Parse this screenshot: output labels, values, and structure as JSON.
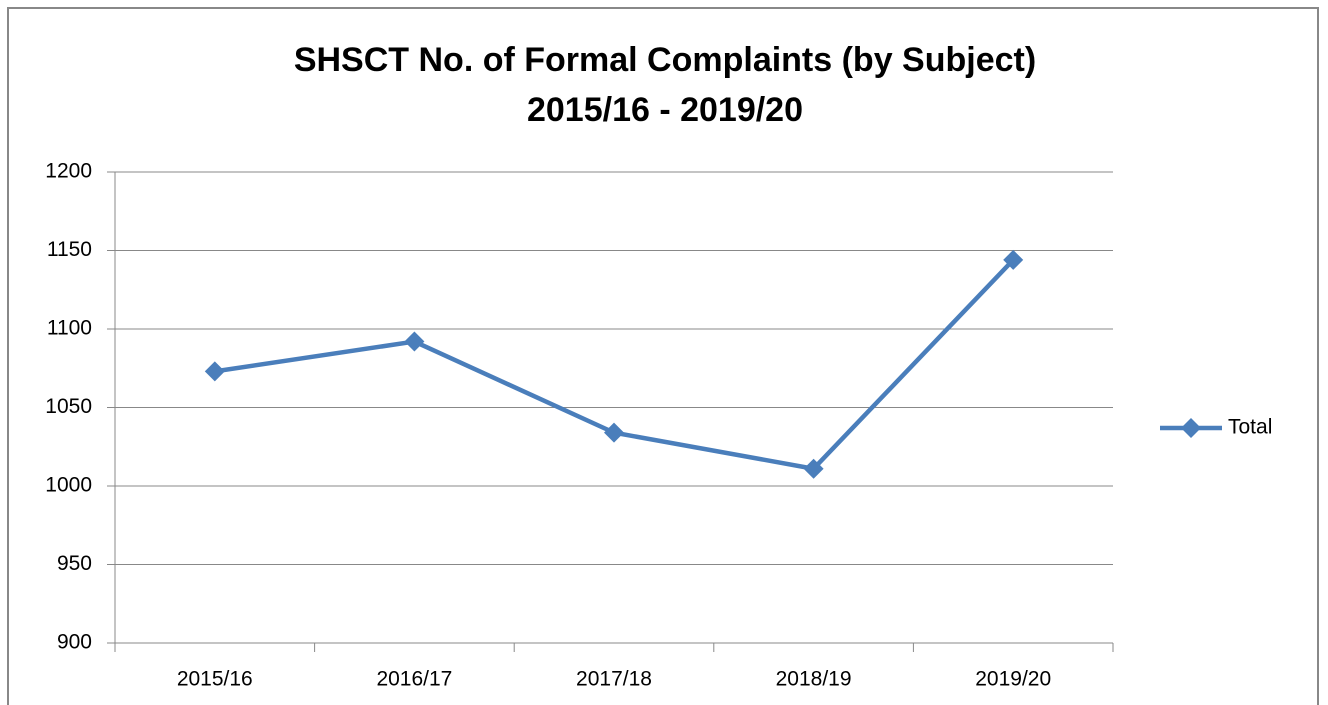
{
  "chart_data": {
    "type": "line",
    "title": [
      "SHSCT No. of Formal Complaints (by Subject)",
      "2015/16 - 2019/20"
    ],
    "categories": [
      "2015/16",
      "2016/17",
      "2017/18",
      "2018/19",
      "2019/20"
    ],
    "series": [
      {
        "name": "Total",
        "color": "#4a7ebb",
        "values": [
          1073,
          1092,
          1034,
          1011,
          1144
        ]
      }
    ],
    "ylim": [
      900,
      1200
    ],
    "yticks": [
      900,
      950,
      1000,
      1050,
      1100,
      1150,
      1200
    ],
    "grid": true,
    "legend": "right"
  }
}
